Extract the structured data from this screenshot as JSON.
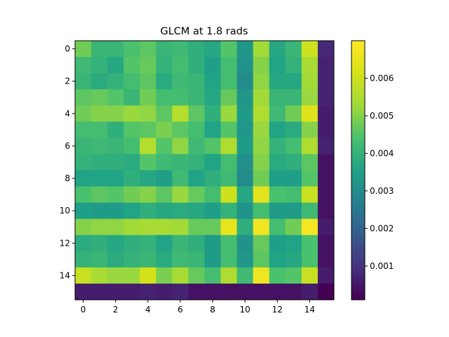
{
  "chart_data": {
    "type": "heatmap",
    "title": "GLCM at 1.8 rads",
    "xlabel": "",
    "ylabel": "",
    "x_ticks": [
      "0",
      "2",
      "4",
      "6",
      "8",
      "10",
      "12",
      "14"
    ],
    "y_ticks": [
      "0",
      "2",
      "4",
      "6",
      "8",
      "10",
      "12",
      "14"
    ],
    "rows": 16,
    "cols": 16,
    "colormap": "viridis",
    "value_range": [
      0.0001,
      0.007
    ],
    "colorbar_ticks": [
      "0.001",
      "0.002",
      "0.003",
      "0.004",
      "0.005",
      "0.006"
    ],
    "colorbar_tick_values": [
      0.001,
      0.002,
      0.003,
      0.004,
      0.005,
      0.006
    ],
    "grid": false,
    "matrix": [
      [
        0.0048,
        0.0041,
        0.0041,
        0.0044,
        0.0046,
        0.0041,
        0.0042,
        0.0039,
        0.0037,
        0.0045,
        0.0033,
        0.0053,
        0.0037,
        0.0041,
        0.006,
        0.0008
      ],
      [
        0.0042,
        0.004,
        0.0037,
        0.0045,
        0.0047,
        0.004,
        0.0043,
        0.0039,
        0.0035,
        0.0043,
        0.0032,
        0.005,
        0.0036,
        0.004,
        0.0054,
        0.0007
      ],
      [
        0.0041,
        0.0038,
        0.004,
        0.0043,
        0.0046,
        0.0038,
        0.0042,
        0.0041,
        0.0036,
        0.0043,
        0.003,
        0.0051,
        0.0037,
        0.0037,
        0.0053,
        0.0007
      ],
      [
        0.0046,
        0.0047,
        0.0045,
        0.0041,
        0.0048,
        0.0043,
        0.0043,
        0.0041,
        0.0037,
        0.0047,
        0.0033,
        0.0053,
        0.0041,
        0.0041,
        0.0052,
        0.0007
      ],
      [
        0.0048,
        0.005,
        0.005,
        0.0052,
        0.0051,
        0.0046,
        0.0056,
        0.0046,
        0.0039,
        0.0052,
        0.0034,
        0.0055,
        0.0042,
        0.0048,
        0.0063,
        0.0006
      ],
      [
        0.0043,
        0.0043,
        0.0039,
        0.0045,
        0.0046,
        0.0049,
        0.0046,
        0.0043,
        0.0036,
        0.0045,
        0.0033,
        0.0052,
        0.0036,
        0.0038,
        0.005,
        0.0006
      ],
      [
        0.0041,
        0.0042,
        0.0041,
        0.0043,
        0.0056,
        0.0045,
        0.0051,
        0.0042,
        0.0045,
        0.0055,
        0.0034,
        0.0051,
        0.004,
        0.0043,
        0.0055,
        0.0007
      ],
      [
        0.004,
        0.0039,
        0.0039,
        0.0038,
        0.0045,
        0.0042,
        0.0041,
        0.004,
        0.0036,
        0.0043,
        0.0031,
        0.005,
        0.0038,
        0.0039,
        0.0046,
        0.0004
      ],
      [
        0.0036,
        0.0036,
        0.0036,
        0.0039,
        0.0037,
        0.0035,
        0.0042,
        0.0036,
        0.0039,
        0.0042,
        0.003,
        0.0048,
        0.0035,
        0.0035,
        0.0045,
        0.0004
      ],
      [
        0.0044,
        0.0046,
        0.0045,
        0.0048,
        0.005,
        0.0046,
        0.0052,
        0.0047,
        0.0043,
        0.006,
        0.0037,
        0.0064,
        0.0044,
        0.0043,
        0.0059,
        0.0004
      ],
      [
        0.0035,
        0.0034,
        0.0034,
        0.0036,
        0.0039,
        0.0037,
        0.0038,
        0.0037,
        0.0035,
        0.004,
        0.0032,
        0.0043,
        0.0034,
        0.0034,
        0.0042,
        0.0004
      ],
      [
        0.005,
        0.0051,
        0.0051,
        0.0053,
        0.0054,
        0.0054,
        0.0053,
        0.0047,
        0.0047,
        0.0065,
        0.0039,
        0.0067,
        0.0043,
        0.0048,
        0.0068,
        0.0006
      ],
      [
        0.0038,
        0.0039,
        0.0037,
        0.0039,
        0.004,
        0.0036,
        0.0041,
        0.0039,
        0.0034,
        0.0043,
        0.0032,
        0.0047,
        0.0035,
        0.0036,
        0.0044,
        0.0004
      ],
      [
        0.004,
        0.0041,
        0.0038,
        0.004,
        0.0041,
        0.0038,
        0.0042,
        0.0041,
        0.0034,
        0.0043,
        0.0033,
        0.0046,
        0.0036,
        0.0037,
        0.0044,
        0.0004
      ],
      [
        0.0059,
        0.0054,
        0.0052,
        0.0052,
        0.0061,
        0.0049,
        0.0054,
        0.0047,
        0.0043,
        0.0055,
        0.0042,
        0.0067,
        0.0044,
        0.0045,
        0.0059,
        0.0006
      ],
      [
        0.0006,
        0.0006,
        0.0006,
        0.0006,
        0.0007,
        0.0006,
        0.0007,
        0.0004,
        0.0004,
        0.0004,
        0.0004,
        0.0004,
        0.0004,
        0.0004,
        0.0006,
        0.0001
      ]
    ]
  }
}
